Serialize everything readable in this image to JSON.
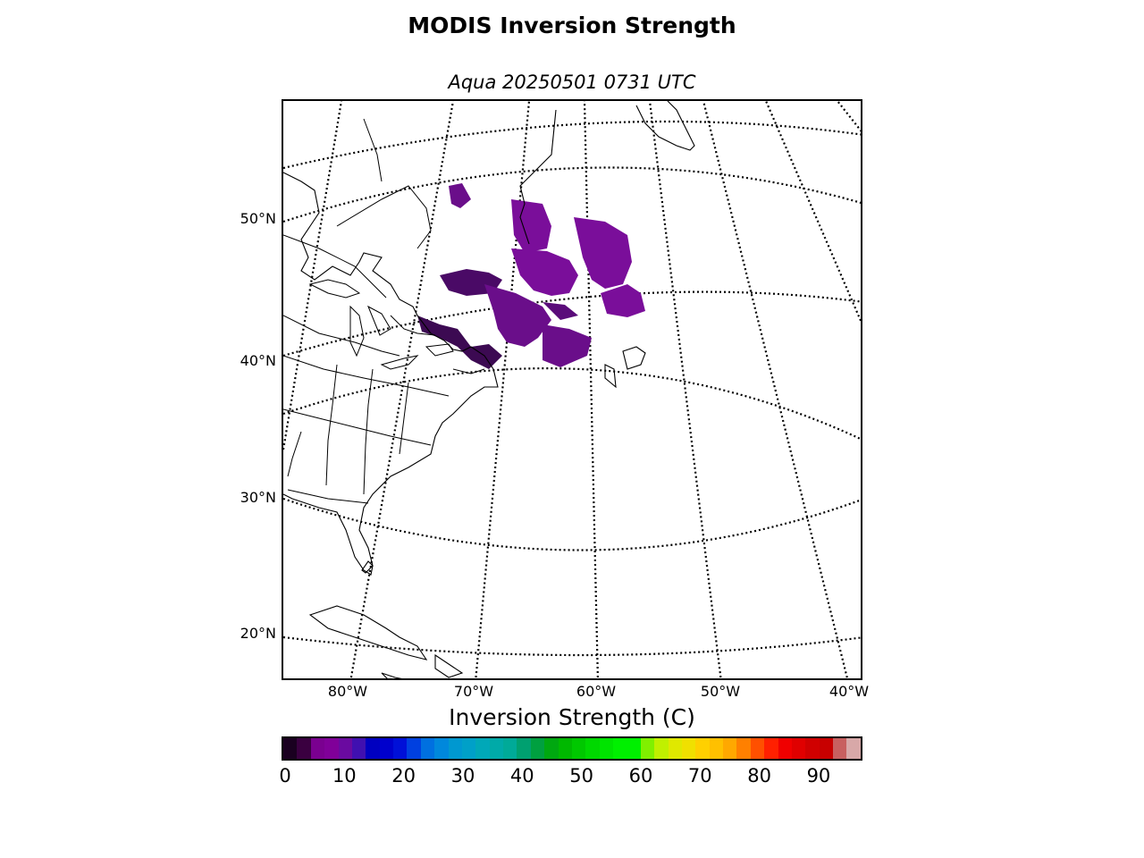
{
  "title": "MODIS Inversion Strength",
  "subtitle": "Aqua 20250501 0731 UTC",
  "map": {
    "lat_labels": [
      "50°N",
      "40°N",
      "30°N",
      "20°N"
    ],
    "lon_labels": [
      "80°W",
      "70°W",
      "60°W",
      "50°W",
      "40°W"
    ],
    "data_color": "#6a0e8a",
    "data_color_dark": "#3c0a52"
  },
  "colorbar": {
    "label": "Inversion Strength (C)",
    "ticks": [
      "0",
      "10",
      "20",
      "30",
      "40",
      "50",
      "60",
      "70",
      "80",
      "90"
    ],
    "range": [
      0,
      98
    ],
    "colors": [
      "#1a0020",
      "#3a0040",
      "#7a0090",
      "#800099",
      "#6a0aa0",
      "#4010b0",
      "#0000c0",
      "#0000cc",
      "#0010d8",
      "#0040e0",
      "#0070e0",
      "#0088dc",
      "#0098d0",
      "#00a0c8",
      "#00a8b8",
      "#00aaa8",
      "#00aa98",
      "#00a070",
      "#00a040",
      "#00a810",
      "#00b800",
      "#00c800",
      "#00d800",
      "#00e400",
      "#00f000",
      "#00f000",
      "#80f000",
      "#c0f000",
      "#e0e800",
      "#f0e000",
      "#ffd000",
      "#ffc000",
      "#ffa800",
      "#ff8000",
      "#ff5000",
      "#ff2000",
      "#f00000",
      "#e00000",
      "#d00000",
      "#c80000",
      "#c86060",
      "#d8a8a8"
    ]
  }
}
